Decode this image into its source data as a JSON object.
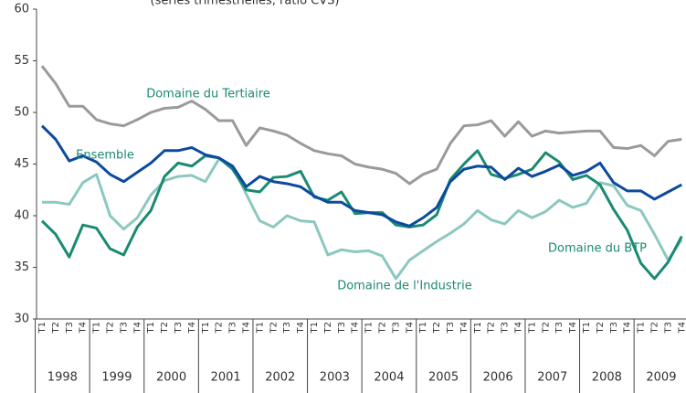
{
  "chart_data": {
    "type": "line",
    "subtitle": "(séries trimestrielles, ratio CVS)",
    "categories": [
      "T1",
      "T2",
      "T3",
      "T4",
      "T1",
      "T2",
      "T3",
      "T4",
      "T1",
      "T2",
      "T3",
      "T4",
      "T1",
      "T2",
      "T3",
      "T4",
      "T1",
      "T2",
      "T3",
      "T4",
      "T1",
      "T2",
      "T3",
      "T4",
      "T1",
      "T2",
      "T3",
      "T4",
      "T1",
      "T2",
      "T3",
      "T4",
      "T1",
      "T2",
      "T3",
      "T4",
      "T1",
      "T2",
      "T3",
      "T4",
      "T1",
      "T2",
      "T3",
      "T4",
      "T1",
      "T2",
      "T3",
      "T4"
    ],
    "years": [
      "1998",
      "1999",
      "2000",
      "2001",
      "2002",
      "2003",
      "2004",
      "2005",
      "2006",
      "2007",
      "2008",
      "2009"
    ],
    "ylim": [
      30,
      60
    ],
    "yticks": [
      30,
      35,
      40,
      45,
      50,
      55,
      60
    ],
    "series": [
      {
        "name": "Domaine du Tertiaire",
        "color": "#9a9a9a",
        "values": [
          54.5,
          52.8,
          50.6,
          50.6,
          49.3,
          48.9,
          48.7,
          49.3,
          50.0,
          50.4,
          50.5,
          51.1,
          50.3,
          49.2,
          49.2,
          46.8,
          48.5,
          48.2,
          47.8,
          47.0,
          46.3,
          46.0,
          45.8,
          45.0,
          44.7,
          44.5,
          44.1,
          43.1,
          44.0,
          44.5,
          47.0,
          48.7,
          48.8,
          49.2,
          47.7,
          49.1,
          47.7,
          48.2,
          48.0,
          48.1,
          48.2,
          48.2,
          46.6,
          46.5,
          46.8,
          45.8,
          47.2,
          47.4
        ]
      },
      {
        "name": "Ensemble",
        "color": "#0d4a9e",
        "values": [
          48.7,
          47.4,
          45.3,
          45.8,
          45.2,
          44.0,
          43.3,
          44.2,
          45.1,
          46.3,
          46.3,
          46.6,
          45.9,
          45.6,
          44.8,
          42.8,
          43.8,
          43.3,
          43.1,
          42.8,
          41.9,
          41.3,
          41.3,
          40.5,
          40.3,
          40.1,
          39.4,
          39.0,
          39.8,
          40.8,
          43.3,
          44.5,
          44.8,
          44.7,
          43.5,
          44.6,
          43.8,
          44.3,
          44.9,
          43.9,
          44.3,
          45.1,
          43.2,
          42.4,
          42.4,
          41.6,
          42.3,
          43.0
        ]
      },
      {
        "name": "Domaine du BTP",
        "color": "#1a8a72",
        "values": [
          39.5,
          38.2,
          36.0,
          39.1,
          38.8,
          36.8,
          36.2,
          38.9,
          40.5,
          43.8,
          45.1,
          44.8,
          45.8,
          45.6,
          44.5,
          42.5,
          42.3,
          43.7,
          43.8,
          44.3,
          41.8,
          41.5,
          42.3,
          40.2,
          40.3,
          40.3,
          39.1,
          38.9,
          39.1,
          40.1,
          43.5,
          45.0,
          46.3,
          44.0,
          43.6,
          44.0,
          44.5,
          46.1,
          45.2,
          43.5,
          43.9,
          43.0,
          40.6,
          38.6,
          35.4,
          33.9,
          35.5,
          38.0
        ]
      },
      {
        "name": "Domaine de l'Industrie",
        "color": "#8cc8bf",
        "values": [
          41.3,
          41.3,
          41.1,
          43.2,
          44.0,
          40.0,
          38.7,
          39.8,
          42.0,
          43.4,
          43.8,
          43.9,
          43.3,
          45.5,
          44.8,
          42.1,
          39.5,
          38.9,
          40.0,
          39.5,
          39.4,
          36.2,
          36.7,
          36.5,
          36.6,
          36.1,
          33.9,
          35.7,
          36.6,
          37.5,
          38.3,
          39.2,
          40.5,
          39.6,
          39.2,
          40.5,
          39.8,
          40.4,
          41.5,
          40.8,
          41.2,
          43.2,
          42.9,
          41.0,
          40.5,
          38.2,
          35.7,
          37.7
        ]
      }
    ]
  }
}
